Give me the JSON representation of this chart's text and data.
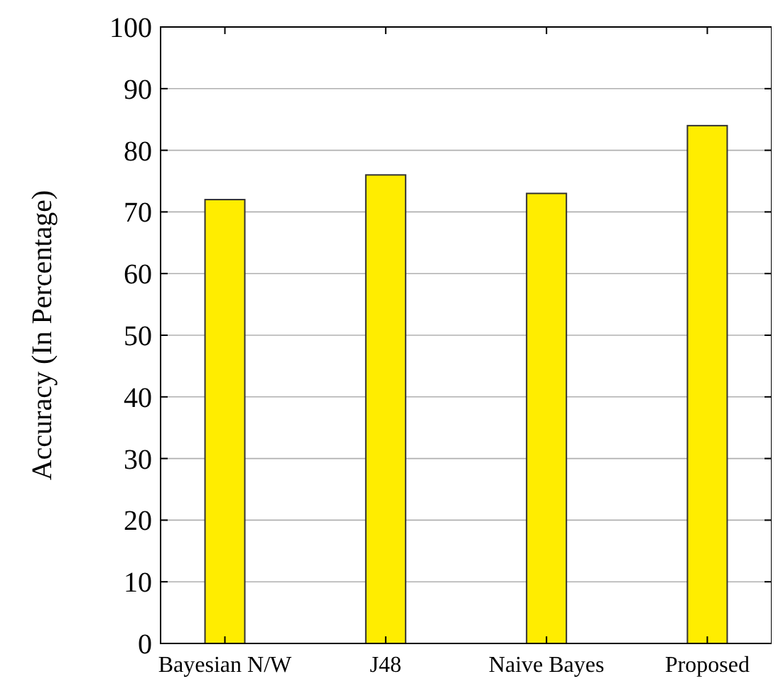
{
  "chart_data": {
    "type": "bar",
    "ylabel": "Accuracy (In Percentage)",
    "categories": [
      "Bayesian N/W",
      "J48",
      "Naive Bayes",
      "Proposed"
    ],
    "values": [
      72,
      76,
      73,
      84
    ],
    "color": "#ffed00",
    "ylim": [
      0,
      100
    ],
    "yticks": [
      0,
      10,
      20,
      30,
      40,
      50,
      60,
      70,
      80,
      90,
      100
    ],
    "grid": "y"
  }
}
